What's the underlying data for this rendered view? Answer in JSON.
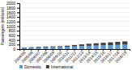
{
  "chart_data": {
    "type": "bar",
    "stacked": true,
    "categories": [
      "2004/05",
      "2005/06",
      "2006/07",
      "2007/08",
      "2008/09",
      "2009/10",
      "2010/11",
      "2011/12",
      "2012/13",
      "2013/14",
      "2014/15",
      "2015/16",
      "2016/17",
      "2017/18",
      "2018/19"
    ],
    "series": [
      {
        "name": "Domestic",
        "color": "#5b9bd5",
        "values": [
          55,
          62,
          70,
          80,
          82,
          88,
          100,
          115,
          130,
          145,
          155,
          165,
          175,
          185,
          195
        ]
      },
      {
        "name": "International",
        "color": "#404040",
        "values": [
          18,
          22,
          27,
          33,
          35,
          38,
          48,
          62,
          75,
          88,
          100,
          110,
          120,
          130,
          140
        ]
      }
    ],
    "ylabel": "Passengers (millions)",
    "ylim": [
      0,
      2000
    ],
    "yticks": [
      0,
      200,
      400,
      600,
      800,
      1000,
      1200,
      1400,
      1600,
      1800,
      2000
    ],
    "grid": true,
    "legend": "bottom"
  }
}
